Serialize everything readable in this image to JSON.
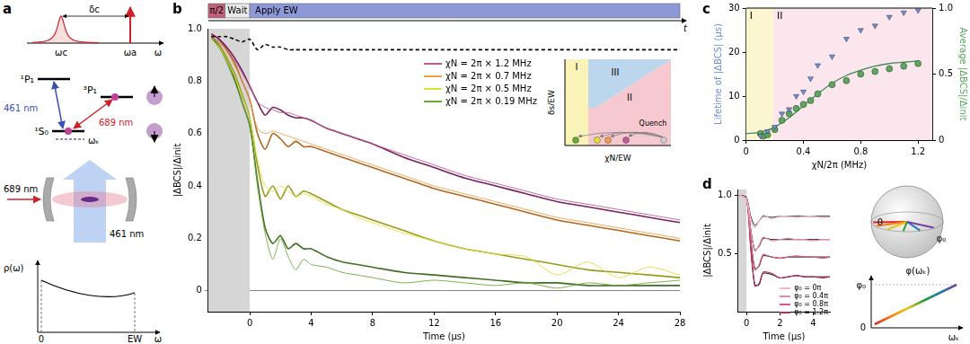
{
  "panel_labels": [
    "a",
    "b",
    "c",
    "d"
  ],
  "diagram_a": {
    "spectrum": {
      "detuning": "δc",
      "cavity": "ωc",
      "atom": "ωa",
      "axis": "ω"
    },
    "levels": {
      "upper": "¹P₁",
      "intermediate": "³P₁",
      "ground": "¹S₀",
      "dressed": "ωₖ",
      "blue": "461 nm",
      "red": "689 nm"
    },
    "cavity": {
      "probe": "689 nm",
      "pump": "461 nm"
    },
    "dos": {
      "y_label": "ρ(ω)",
      "x_label": "ω",
      "x_ticks": [
        "0",
        "EW"
      ]
    }
  },
  "inset_b": {
    "regions": [
      {
        "label": "I",
        "color": "#faf3b8"
      },
      {
        "label": "II",
        "color": "#f6c9d0"
      },
      {
        "label": "III",
        "color": "#bcd6ee"
      }
    ],
    "x_label": "χN/EW",
    "y_label": "δs/EW",
    "annotation": "Quench"
  },
  "bloch_d": {
    "sphere_labels": [
      "0",
      "φ₀"
    ],
    "plot_y_label": "φ(ωₖ)",
    "plot_y_ticks": [
      "0",
      "φ₀"
    ],
    "plot_x_label": "ωₖ"
  },
  "chart_data": [
    {
      "type": "line",
      "x_label": "Time (µs)",
      "y_label": "|ΔBCS|/Δinit",
      "xlim": [
        -2.7,
        28
      ],
      "xticks": [
        0,
        4,
        8,
        12,
        16,
        20,
        24,
        28
      ],
      "ylim": [
        -0.08,
        1
      ],
      "yticks": [
        0,
        0.2,
        0.4,
        0.6,
        0.8,
        {
          "value": 1,
          "label": "1.0"
        }
      ],
      "legend": "upper right",
      "shaded": {
        "from": -2.7,
        "to": 0,
        "color": "#d6d6d6"
      },
      "sequence": [
        {
          "label": "π/2",
          "from": -2.7,
          "to": -1.6,
          "color": "#c0607a"
        },
        {
          "label": "Wait",
          "from": -1.6,
          "to": 0,
          "color": "#e8e8e8"
        },
        {
          "label": "Apply EW",
          "from": 0,
          "to": 28,
          "color": "#8c98d8"
        }
      ],
      "sequence_end": "t",
      "x": [
        -2.5,
        -2,
        -1.5,
        -1,
        -0.5,
        0,
        0.5,
        1,
        1.5,
        2,
        2.5,
        3,
        3.5,
        4,
        5,
        6,
        7,
        8,
        10,
        12,
        14,
        16,
        18,
        20,
        22,
        24,
        26,
        28
      ],
      "series": [
        {
          "color": "#000000",
          "line_style": "dashed",
          "values": [
            0.97,
            0.97,
            0.97,
            0.96,
            0.95,
            0.96,
            0.92,
            0.94,
            0.93,
            0.93,
            0.92,
            0.92,
            0.92,
            0.92,
            0.92,
            0.92,
            0.92,
            0.92,
            0.92,
            0.92,
            0.92,
            0.92,
            0.92,
            0.92,
            0.92,
            0.92,
            0.92,
            0.92
          ]
        },
        {
          "name": "χN = 2π × 1.2 MHz",
          "color": "#c05a9a",
          "line_style": "solid",
          "values": [
            0.97,
            0.95,
            0.92,
            0.88,
            0.83,
            0.78,
            0.72,
            0.7,
            0.69,
            0.68,
            0.68,
            0.67,
            0.66,
            0.65,
            0.62,
            0.6,
            0.58,
            0.56,
            0.52,
            0.48,
            0.44,
            0.41,
            0.38,
            0.35,
            0.33,
            0.31,
            0.29,
            0.27
          ]
        },
        {
          "name": "χN = 2π × 0.7 MHz",
          "color": "#f0a050",
          "line_style": "solid",
          "values": [
            0.97,
            0.95,
            0.91,
            0.86,
            0.8,
            0.73,
            0.62,
            0.6,
            0.61,
            0.6,
            0.59,
            0.58,
            0.57,
            0.56,
            0.54,
            0.52,
            0.5,
            0.48,
            0.44,
            0.4,
            0.37,
            0.34,
            0.31,
            0.28,
            0.26,
            0.24,
            0.22,
            0.2
          ]
        },
        {
          "name": "χN = 2π × 0.5 MHz",
          "color": "#e0e040",
          "line_style": "solid",
          "values": [
            0.96,
            0.93,
            0.88,
            0.82,
            0.74,
            0.66,
            0.5,
            0.4,
            0.38,
            0.4,
            0.38,
            0.36,
            0.37,
            0.36,
            0.33,
            0.31,
            0.28,
            0.26,
            0.22,
            0.19,
            0.16,
            0.14,
            0.13,
            0.06,
            0.11,
            0.05,
            0.09,
            0.06
          ]
        },
        {
          "name": "χN = 2π × 0.19 MHz",
          "color": "#6aaa3a",
          "line_style": "solid",
          "values": [
            0.96,
            0.93,
            0.87,
            0.8,
            0.72,
            0.63,
            0.4,
            0.22,
            0.12,
            0.2,
            0.13,
            0.08,
            0.12,
            0.1,
            0.09,
            0.07,
            0.06,
            0.05,
            0.03,
            0.04,
            0.03,
            0.02,
            0.03,
            0.01,
            0.03,
            0.02,
            0.03,
            0.04
          ]
        },
        {
          "color": "#7a1e5a",
          "line_style": "solid",
          "values": [
            0.98,
            0.96,
            0.93,
            0.89,
            0.84,
            0.78,
            0.72,
            0.67,
            0.7,
            0.69,
            0.67,
            0.66,
            0.66,
            0.65,
            0.62,
            0.6,
            0.58,
            0.56,
            0.51,
            0.47,
            0.43,
            0.4,
            0.37,
            0.34,
            0.32,
            0.3,
            0.28,
            0.26
          ]
        },
        {
          "color": "#b5651d",
          "line_style": "solid",
          "values": [
            0.98,
            0.96,
            0.92,
            0.87,
            0.8,
            0.73,
            0.6,
            0.54,
            0.6,
            0.58,
            0.55,
            0.57,
            0.55,
            0.55,
            0.53,
            0.51,
            0.49,
            0.47,
            0.43,
            0.39,
            0.36,
            0.33,
            0.3,
            0.27,
            0.25,
            0.23,
            0.21,
            0.19
          ]
        },
        {
          "color": "#9a9a1c",
          "line_style": "solid",
          "values": [
            0.97,
            0.94,
            0.89,
            0.83,
            0.75,
            0.66,
            0.48,
            0.36,
            0.4,
            0.35,
            0.4,
            0.36,
            0.38,
            0.37,
            0.34,
            0.31,
            0.29,
            0.27,
            0.23,
            0.19,
            0.16,
            0.14,
            0.12,
            0.1,
            0.08,
            0.07,
            0.06,
            0.05
          ]
        },
        {
          "color": "#3f6e22",
          "line_style": "solid",
          "values": [
            0.97,
            0.93,
            0.88,
            0.81,
            0.72,
            0.63,
            0.42,
            0.24,
            0.18,
            0.21,
            0.16,
            0.18,
            0.16,
            0.16,
            0.13,
            0.11,
            0.1,
            0.09,
            0.07,
            0.06,
            0.05,
            0.04,
            0.03,
            0.03,
            0.02,
            0.02,
            0.02,
            0.02
          ]
        }
      ]
    },
    {
      "type": "scatter",
      "x_label": "χN/2π (MHz)",
      "y_label": "Lifetime of |ΔBCS| (µs)",
      "y2_label": "Average |ΔBCS|/Δinit",
      "xlim": [
        0,
        1.3
      ],
      "xticks": [
        0,
        0.4,
        0.8,
        1.2
      ],
      "ylim": [
        0,
        30
      ],
      "yticks": [
        0,
        10,
        20,
        30
      ],
      "y2lim": [
        0,
        1
      ],
      "y2ticks": [
        0,
        0.5,
        {
          "value": 1,
          "label": "1.0"
        }
      ],
      "regions": [
        {
          "label": "I",
          "from": 0,
          "to": 0.19,
          "color": "#fbf6d0"
        },
        {
          "label": "II",
          "from": 0.19,
          "to": 1.3,
          "color": "#fbe6ee"
        }
      ],
      "series": [
        {
          "type": "scatter",
          "marker": "triangle",
          "color": "#6f8fd8",
          "x": [
            0.1,
            0.15,
            0.2,
            0.25,
            0.3,
            0.35,
            0.4,
            0.45,
            0.5,
            0.6,
            0.7,
            0.8,
            0.9,
            1.0,
            1.1,
            1.2
          ],
          "values": [
            1,
            2,
            3,
            6,
            7,
            10,
            11,
            14,
            17,
            19,
            23,
            25,
            26,
            28,
            29,
            29.5
          ]
        },
        {
          "type": "scatter",
          "marker": "circle",
          "color": "#5aa85a",
          "axis": "y2",
          "x": [
            0.1,
            0.12,
            0.15,
            0.2,
            0.25,
            0.3,
            0.35,
            0.4,
            0.45,
            0.5,
            0.6,
            0.7,
            0.8,
            0.9,
            1.0,
            1.1,
            1.2
          ],
          "values": [
            0.05,
            0.03,
            0.04,
            0.08,
            0.15,
            0.2,
            0.24,
            0.27,
            0.3,
            0.35,
            0.42,
            0.45,
            0.5,
            0.52,
            0.54,
            0.56,
            0.58
          ]
        },
        {
          "type": "line",
          "color": "#3f8a5a",
          "axis": "y2",
          "x": [
            0,
            0.1,
            0.2,
            0.3,
            0.4,
            0.5,
            0.6,
            0.7,
            0.8,
            0.9,
            1.0,
            1.1,
            1.2
          ],
          "values": [
            0.05,
            0.06,
            0.1,
            0.17,
            0.26,
            0.35,
            0.43,
            0.49,
            0.53,
            0.56,
            0.58,
            0.59,
            0.6
          ]
        }
      ]
    },
    {
      "type": "line",
      "x_label": "Time (µs)",
      "y_label": "|ΔBCS|/Δinit",
      "xlim": [
        -0.5,
        5
      ],
      "xticks": [
        0,
        2,
        4
      ],
      "ylim": [
        0,
        1.05
      ],
      "yticks": [
        0.5,
        {
          "value": 1,
          "label": "1.0"
        }
      ],
      "legend": "lower right",
      "shaded": {
        "from": -0.5,
        "to": 0,
        "color": "#d6d6d6"
      },
      "x": [
        -0.4,
        0,
        0.25,
        0.5,
        0.75,
        1,
        1.5,
        2,
        2.5,
        3,
        3.5,
        4,
        4.5,
        5
      ],
      "series": [
        {
          "name": "φ₀ = 0π",
          "color": "#f4b8c8",
          "line_style": "solid",
          "values": [
            1.0,
            0.97,
            0.8,
            0.72,
            0.78,
            0.83,
            0.8,
            0.82,
            0.82,
            0.81,
            0.82,
            0.82,
            0.81,
            0.81
          ]
        },
        {
          "name": "φ₀ = 0.4π",
          "color": "#e98aa5",
          "line_style": "solid",
          "values": [
            1.0,
            0.97,
            0.7,
            0.52,
            0.57,
            0.64,
            0.61,
            0.62,
            0.63,
            0.62,
            0.62,
            0.61,
            0.62,
            0.62
          ]
        },
        {
          "name": "φ₀ = 0.8π",
          "color": "#d9587e",
          "line_style": "solid",
          "values": [
            1.0,
            0.97,
            0.62,
            0.36,
            0.4,
            0.49,
            0.47,
            0.46,
            0.47,
            0.48,
            0.47,
            0.47,
            0.46,
            0.47
          ]
        },
        {
          "name": "φ₀ = 1.2π",
          "color": "#b7305a",
          "line_style": "solid",
          "values": [
            1.0,
            0.97,
            0.55,
            0.22,
            0.24,
            0.34,
            0.33,
            0.29,
            0.3,
            0.31,
            0.3,
            0.3,
            0.29,
            0.3
          ]
        },
        {
          "color": "#000000",
          "line_style": "solid",
          "values": [
            1.0,
            0.98,
            0.82,
            0.74,
            0.78,
            0.82,
            0.81,
            0.82,
            0.82,
            0.82,
            0.82,
            0.82,
            0.82,
            0.82
          ]
        },
        {
          "color": "#000000",
          "line_style": "solid",
          "values": [
            1.0,
            0.98,
            0.71,
            0.53,
            0.56,
            0.63,
            0.62,
            0.62,
            0.62,
            0.62,
            0.62,
            0.62,
            0.62,
            0.62
          ]
        },
        {
          "color": "#000000",
          "line_style": "solid",
          "values": [
            1.0,
            0.98,
            0.63,
            0.37,
            0.39,
            0.48,
            0.47,
            0.46,
            0.47,
            0.47,
            0.47,
            0.47,
            0.47,
            0.47
          ]
        },
        {
          "color": "#000000",
          "line_style": "solid",
          "values": [
            1.0,
            0.98,
            0.56,
            0.23,
            0.23,
            0.33,
            0.32,
            0.29,
            0.3,
            0.31,
            0.3,
            0.3,
            0.3,
            0.3
          ]
        }
      ]
    }
  ]
}
